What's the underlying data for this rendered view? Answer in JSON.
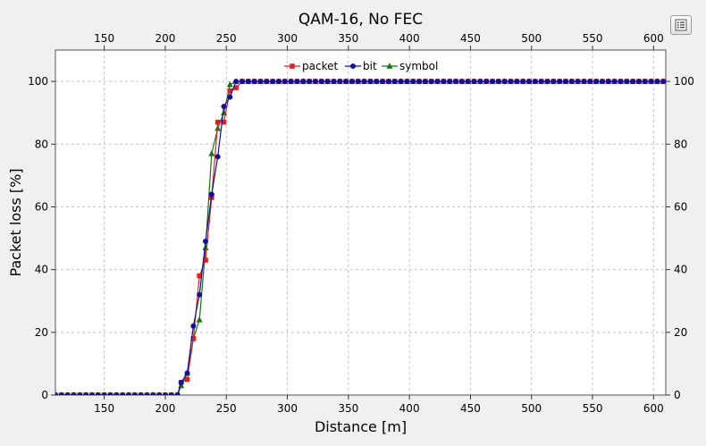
{
  "chart_data": {
    "type": "line",
    "title": "QAM-16, No FEC",
    "xlabel": "Distance [m]",
    "ylabel": "Packet loss [%]",
    "xlim": [
      110,
      610
    ],
    "ylim": [
      0,
      110
    ],
    "x_ticks": [
      150,
      200,
      250,
      300,
      350,
      400,
      450,
      500,
      550,
      600
    ],
    "y_ticks": [
      0,
      20,
      40,
      60,
      80,
      100
    ],
    "x_tick_labels": [
      "150",
      "200",
      "250",
      "300",
      "350",
      "400",
      "450",
      "500",
      "550",
      "600"
    ],
    "y_tick_labels": [
      "0",
      "20",
      "40",
      "60",
      "80",
      "100"
    ],
    "grid": true,
    "legend_position": "top-center",
    "series": [
      {
        "name": "packet",
        "color": "#dd2222",
        "marker": "square",
        "x": [
          110,
          115,
          120,
          125,
          130,
          135,
          140,
          145,
          150,
          155,
          160,
          165,
          170,
          175,
          180,
          185,
          190,
          195,
          200,
          205,
          210,
          213,
          218,
          223,
          228,
          233,
          238,
          243,
          248,
          253,
          258,
          263,
          268,
          273,
          278,
          283,
          288,
          293,
          298,
          303,
          308,
          313,
          318,
          323,
          328,
          333,
          338,
          343,
          348,
          353,
          358,
          363,
          368,
          373,
          378,
          383,
          388,
          393,
          398,
          403,
          408,
          413,
          418,
          423,
          428,
          433,
          438,
          443,
          448,
          453,
          458,
          463,
          468,
          473,
          478,
          483,
          488,
          493,
          498,
          503,
          508,
          513,
          518,
          523,
          528,
          533,
          538,
          543,
          548,
          553,
          558,
          563,
          568,
          573,
          578,
          583,
          588,
          593,
          598,
          603,
          608
        ],
        "values": [
          0,
          0,
          0,
          0,
          0,
          0,
          0,
          0,
          0,
          0,
          0,
          0,
          0,
          0,
          0,
          0,
          0,
          0,
          0,
          0,
          0,
          4,
          5,
          18,
          38,
          43,
          63,
          87,
          87,
          97,
          98,
          100,
          100,
          100,
          100,
          100,
          100,
          100,
          100,
          100,
          100,
          100,
          100,
          100,
          100,
          100,
          100,
          100,
          100,
          100,
          100,
          100,
          100,
          100,
          100,
          100,
          100,
          100,
          100,
          100,
          100,
          100,
          100,
          100,
          100,
          100,
          100,
          100,
          100,
          100,
          100,
          100,
          100,
          100,
          100,
          100,
          100,
          100,
          100,
          100,
          100,
          100,
          100,
          100,
          100,
          100,
          100,
          100,
          100,
          100,
          100,
          100,
          100,
          100,
          100,
          100,
          100,
          100,
          100,
          100,
          100
        ]
      },
      {
        "name": "bit",
        "color": "#10109a",
        "marker": "circle",
        "x": [
          110,
          115,
          120,
          125,
          130,
          135,
          140,
          145,
          150,
          155,
          160,
          165,
          170,
          175,
          180,
          185,
          190,
          195,
          200,
          205,
          210,
          213,
          218,
          223,
          228,
          233,
          238,
          243,
          248,
          253,
          258,
          263,
          268,
          273,
          278,
          283,
          288,
          293,
          298,
          303,
          308,
          313,
          318,
          323,
          328,
          333,
          338,
          343,
          348,
          353,
          358,
          363,
          368,
          373,
          378,
          383,
          388,
          393,
          398,
          403,
          408,
          413,
          418,
          423,
          428,
          433,
          438,
          443,
          448,
          453,
          458,
          463,
          468,
          473,
          478,
          483,
          488,
          493,
          498,
          503,
          508,
          513,
          518,
          523,
          528,
          533,
          538,
          543,
          548,
          553,
          558,
          563,
          568,
          573,
          578,
          583,
          588,
          593,
          598,
          603,
          608
        ],
        "values": [
          0,
          0,
          0,
          0,
          0,
          0,
          0,
          0,
          0,
          0,
          0,
          0,
          0,
          0,
          0,
          0,
          0,
          0,
          0,
          0,
          0,
          4,
          7,
          22,
          32,
          49,
          64,
          76,
          92,
          95,
          100,
          100,
          100,
          100,
          100,
          100,
          100,
          100,
          100,
          100,
          100,
          100,
          100,
          100,
          100,
          100,
          100,
          100,
          100,
          100,
          100,
          100,
          100,
          100,
          100,
          100,
          100,
          100,
          100,
          100,
          100,
          100,
          100,
          100,
          100,
          100,
          100,
          100,
          100,
          100,
          100,
          100,
          100,
          100,
          100,
          100,
          100,
          100,
          100,
          100,
          100,
          100,
          100,
          100,
          100,
          100,
          100,
          100,
          100,
          100,
          100,
          100,
          100,
          100,
          100,
          100,
          100,
          100,
          100,
          100,
          100
        ]
      },
      {
        "name": "symbol",
        "color": "#117711",
        "marker": "triangle",
        "x": [
          110,
          115,
          120,
          125,
          130,
          135,
          140,
          145,
          150,
          155,
          160,
          165,
          170,
          175,
          180,
          185,
          190,
          195,
          200,
          205,
          210,
          213,
          218,
          223,
          228,
          233,
          238,
          243,
          248,
          253,
          258,
          263,
          268,
          273,
          278,
          283,
          288,
          293,
          298,
          303,
          308,
          313,
          318,
          323,
          328,
          333,
          338,
          343,
          348,
          353,
          358,
          363,
          368,
          373,
          378,
          383,
          388,
          393,
          398,
          403,
          408,
          413,
          418,
          423,
          428,
          433,
          438,
          443,
          448,
          453,
          458,
          463,
          468,
          473,
          478,
          483,
          488,
          493,
          498,
          503,
          508,
          513,
          518,
          523,
          528,
          533,
          538,
          543,
          548,
          553,
          558,
          563,
          568,
          573,
          578,
          583,
          588,
          593,
          598,
          603,
          608
        ],
        "values": [
          0,
          0,
          0,
          0,
          0,
          0,
          0,
          0,
          0,
          0,
          0,
          0,
          0,
          0,
          0,
          0,
          0,
          0,
          0,
          0,
          0,
          3,
          7,
          18,
          24,
          47,
          77,
          85,
          90,
          99,
          100,
          100,
          100,
          100,
          100,
          100,
          100,
          100,
          100,
          100,
          100,
          100,
          100,
          100,
          100,
          100,
          100,
          100,
          100,
          100,
          100,
          100,
          100,
          100,
          100,
          100,
          100,
          100,
          100,
          100,
          100,
          100,
          100,
          100,
          100,
          100,
          100,
          100,
          100,
          100,
          100,
          100,
          100,
          100,
          100,
          100,
          100,
          100,
          100,
          100,
          100,
          100,
          100,
          100,
          100,
          100,
          100,
          100,
          100,
          100,
          100,
          100,
          100,
          100,
          100,
          100,
          100,
          100,
          100,
          100,
          100
        ]
      }
    ]
  },
  "toolbar": {
    "menu_icon": "list-icon"
  }
}
